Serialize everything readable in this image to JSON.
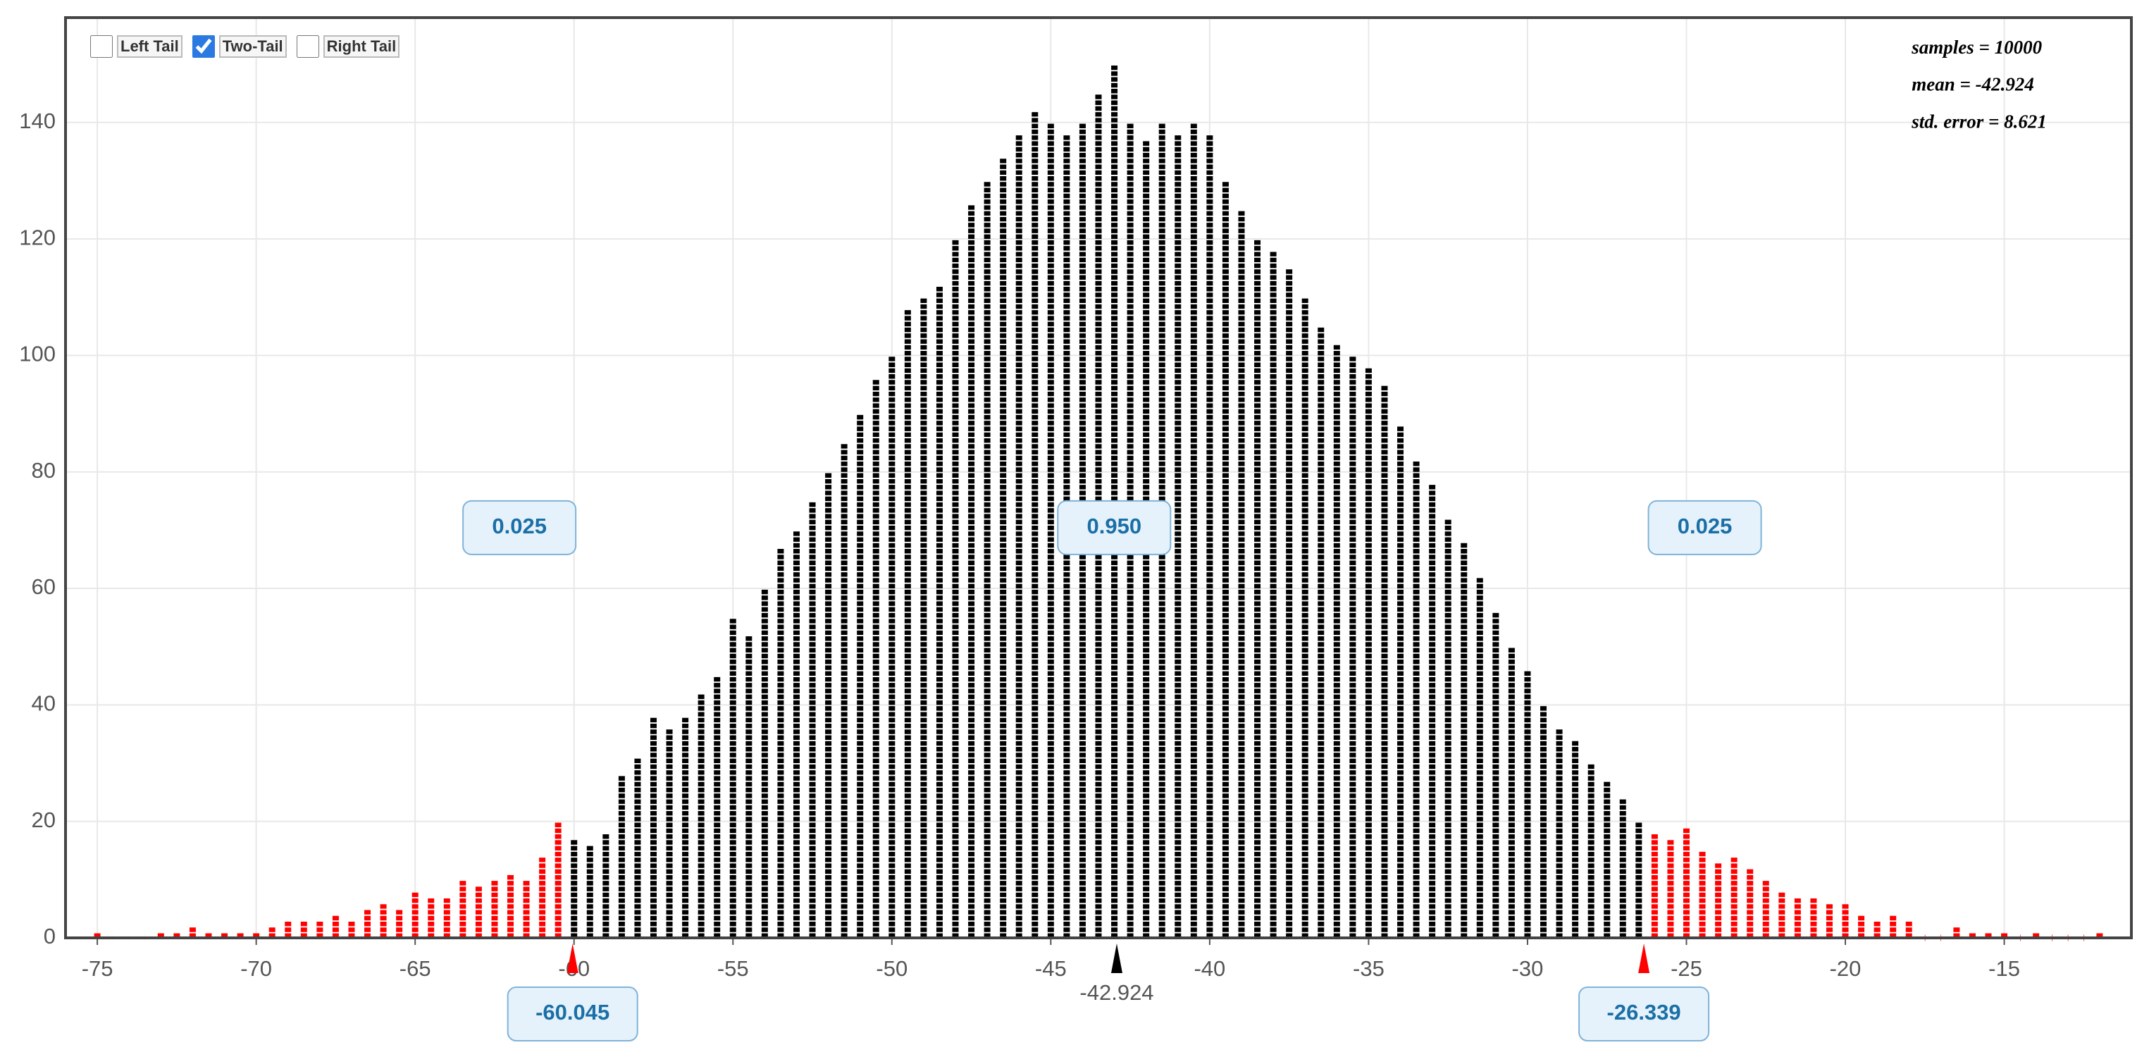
{
  "controls": [
    {
      "label": "Left Tail",
      "checked": false
    },
    {
      "label": "Two-Tail",
      "checked": true
    },
    {
      "label": "Right Tail",
      "checked": false
    }
  ],
  "chart_data": {
    "type": "dotplot",
    "x": [
      -75,
      -74.5,
      -74,
      -73.5,
      -73,
      -72.5,
      -72,
      -71.5,
      -71,
      -70.5,
      -70,
      -69.5,
      -69,
      -68.5,
      -68,
      -67.5,
      -67,
      -66.5,
      -66,
      -65.5,
      -65,
      -64.5,
      -64,
      -63.5,
      -63,
      -62.5,
      -62,
      -61.5,
      -61,
      -60.5,
      -60,
      -59.5,
      -59,
      -58.5,
      -58,
      -57.5,
      -57,
      -56.5,
      -56,
      -55.5,
      -55,
      -54.5,
      -54,
      -53.5,
      -53,
      -52.5,
      -52,
      -51.5,
      -51,
      -50.5,
      -50,
      -49.5,
      -49,
      -48.5,
      -48,
      -47.5,
      -47,
      -46.5,
      -46,
      -45.5,
      -45,
      -44.5,
      -44,
      -43.5,
      -43,
      -42.5,
      -42,
      -41.5,
      -41,
      -40.5,
      -40,
      -39.5,
      -39,
      -38.5,
      -38,
      -37.5,
      -37,
      -36.5,
      -36,
      -35.5,
      -35,
      -34.5,
      -34,
      -33.5,
      -33,
      -32.5,
      -32,
      -31.5,
      -31,
      -30.5,
      -30,
      -29.5,
      -29,
      -28.5,
      -28,
      -27.5,
      -27,
      -26.5,
      -26,
      -25.5,
      -25,
      -24.5,
      -24,
      -23.5,
      -23,
      -22.5,
      -22,
      -21.5,
      -21,
      -20.5,
      -20,
      -19.5,
      -19,
      -18.5,
      -18,
      -17.5,
      -17,
      -16.5,
      -16,
      -15.5,
      -15,
      -14.5,
      -14,
      -13.5,
      -13,
      -12.5,
      -12
    ],
    "values": [
      1,
      0,
      0,
      0,
      1,
      1,
      2,
      1,
      1,
      1,
      1,
      2,
      3,
      3,
      3,
      4,
      3,
      5,
      6,
      5,
      8,
      7,
      7,
      10,
      9,
      10,
      11,
      10,
      14,
      20,
      17,
      16,
      18,
      28,
      31,
      38,
      36,
      38,
      42,
      45,
      55,
      52,
      60,
      67,
      70,
      75,
      80,
      85,
      90,
      96,
      100,
      108,
      110,
      112,
      120,
      126,
      130,
      134,
      138,
      142,
      140,
      138,
      140,
      145,
      150,
      140,
      137,
      140,
      138,
      140,
      138,
      130,
      125,
      120,
      118,
      115,
      110,
      105,
      102,
      100,
      98,
      95,
      88,
      82,
      78,
      72,
      68,
      62,
      56,
      50,
      46,
      40,
      36,
      34,
      30,
      27,
      24,
      20,
      18,
      17,
      19,
      15,
      13,
      14,
      12,
      10,
      8,
      7,
      7,
      6,
      6,
      4,
      3,
      4,
      3,
      0,
      0,
      2,
      1,
      1,
      1,
      0,
      1,
      0,
      0,
      0,
      1
    ],
    "color": "#000000",
    "tail_color": "#ff0000",
    "xlim": [
      -76,
      -11
    ],
    "xticks": [
      -75,
      -70,
      -65,
      -60,
      -55,
      -50,
      -45,
      -40,
      -35,
      -30,
      -25,
      -20,
      -15
    ],
    "ylim": [
      0,
      158
    ],
    "yticks": [
      0,
      20,
      40,
      60,
      80,
      100,
      120,
      140
    ],
    "grid": true,
    "stats": [
      "samples = 10000",
      "mean = -42.924",
      "std. error = 8.621"
    ],
    "mean": -42.924,
    "cutoffs": [
      -60.045,
      -26.339
    ],
    "proportions": [
      "0.025",
      "0.950",
      "0.025"
    ]
  }
}
